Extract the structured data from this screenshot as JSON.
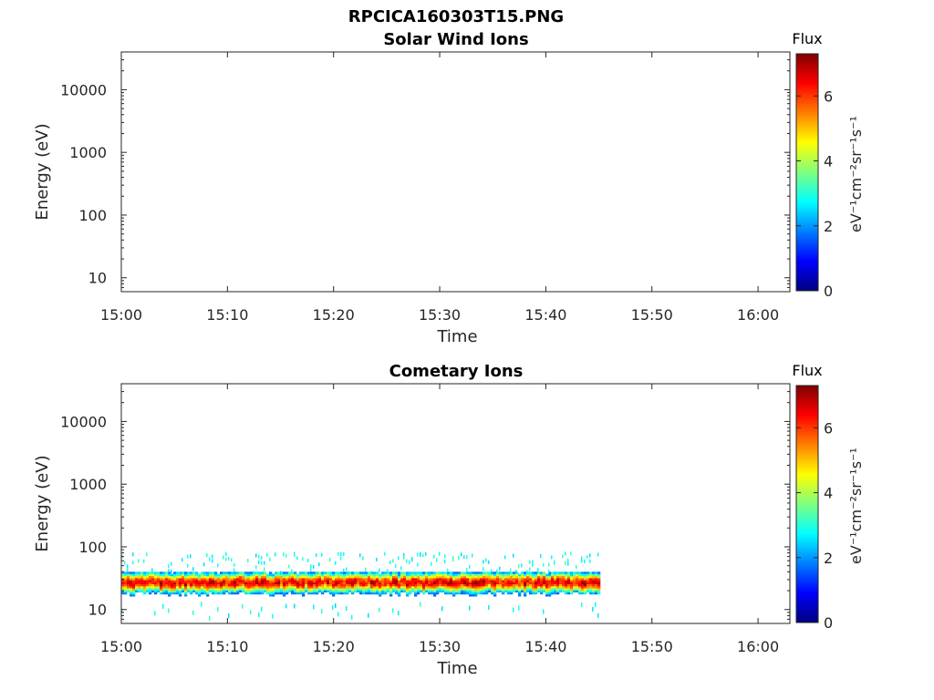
{
  "figure_title": "RPCICA160303T15.PNG",
  "colormap": [
    "#00007f",
    "#0000ff",
    "#007fff",
    "#00ffff",
    "#7fff7f",
    "#ffff00",
    "#ff7f00",
    "#ff0000",
    "#7f0000"
  ],
  "chart_data": [
    {
      "type": "heatmap",
      "title": "Solar Wind Ions",
      "xlabel": "Time",
      "ylabel": "Energy (eV)",
      "x_ticks": [
        "15:00",
        "15:10",
        "15:20",
        "15:30",
        "15:40",
        "15:50",
        "16:00"
      ],
      "xlim": [
        "15:00",
        "16:03"
      ],
      "y_scale": "log",
      "y_ticks": [
        10,
        100,
        1000,
        10000
      ],
      "y_tick_labels": [
        "10",
        "100",
        "1000",
        "10000"
      ],
      "ylim": [
        6,
        40000
      ],
      "colorbar": {
        "title": "Flux",
        "label": "eV⁻¹cm⁻²sr⁻¹s⁻¹",
        "ticks": [
          0,
          2,
          4,
          6
        ],
        "range": [
          0,
          7.3
        ]
      },
      "bands": []
    },
    {
      "type": "heatmap",
      "title": "Cometary Ions",
      "xlabel": "Time",
      "ylabel": "Energy (eV)",
      "x_ticks": [
        "15:00",
        "15:10",
        "15:20",
        "15:30",
        "15:40",
        "15:50",
        "16:00"
      ],
      "xlim": [
        "15:00",
        "16:03"
      ],
      "y_scale": "log",
      "y_ticks": [
        10,
        100,
        1000,
        10000
      ],
      "y_tick_labels": [
        "10",
        "100",
        "1000",
        "10000"
      ],
      "ylim": [
        6,
        40000
      ],
      "colorbar": {
        "title": "Flux",
        "label": "eV⁻¹cm⁻²sr⁻¹s⁻¹",
        "ticks": [
          0,
          2,
          4,
          6
        ],
        "range": [
          0,
          7.3
        ]
      },
      "bands": [
        {
          "time_start": "15:00",
          "time_end": "15:45",
          "energy_min": 14,
          "energy_max": 40,
          "peak_energy": 27,
          "peak_flux": 7.0
        }
      ]
    }
  ]
}
